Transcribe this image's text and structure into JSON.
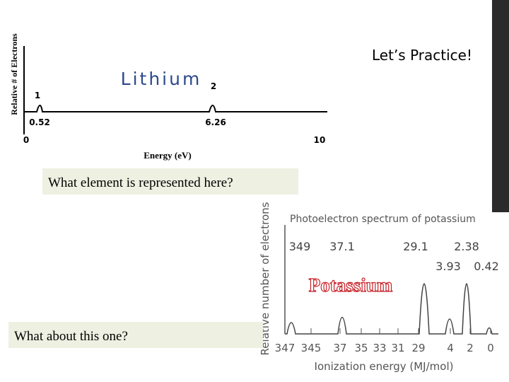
{
  "slide": {
    "title": "Let’s Practice!"
  },
  "spectrum1": {
    "y_label": "Relative # of Electrons",
    "answer": "Lithium",
    "peak_numbers": [
      "1",
      "2"
    ],
    "peak_energies": [
      "0.52",
      "6.26"
    ],
    "axis_labels": [
      "0",
      "10"
    ],
    "x_label": "Energy (eV)",
    "question": "What element is represented here?"
  },
  "spectrum2": {
    "header": "Photoelectron spectrum of potassium",
    "y_label": "Relative number of electrons",
    "answer": "Potassium",
    "peak_labels": [
      "349",
      "37.1",
      "29.1",
      "2.38",
      "3.93",
      "0.42"
    ],
    "x_ticks": [
      "347",
      "345",
      "37",
      "35",
      "33",
      "31",
      "29",
      "4",
      "2",
      "0"
    ],
    "x_label": "Ionization energy (MJ/mol)",
    "question": "What about this one?"
  }
}
